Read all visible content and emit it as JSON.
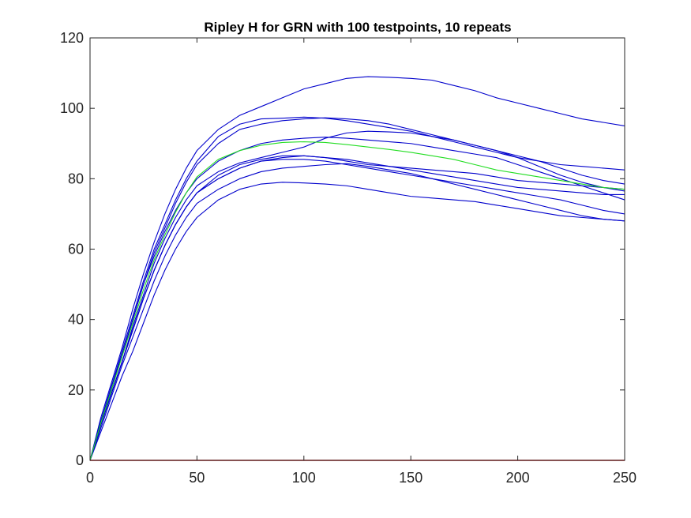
{
  "chart_data": {
    "type": "line",
    "title": "Ripley H for GRN with 100 testpoints, 10 repeats",
    "xlabel": "",
    "ylabel": "",
    "xlim": [
      0,
      250
    ],
    "ylim": [
      0,
      120
    ],
    "xticks": [
      0,
      50,
      100,
      150,
      200,
      250
    ],
    "yticks": [
      0,
      20,
      40,
      60,
      80,
      100,
      120
    ],
    "grid": false,
    "legend": "none",
    "colors": {
      "repeat": "#0000cc",
      "mean": "#22dd22",
      "baseline": "#cc0000",
      "axis": "#262626"
    },
    "x": [
      0,
      5,
      10,
      15,
      20,
      25,
      30,
      35,
      40,
      45,
      50,
      60,
      70,
      80,
      90,
      100,
      110,
      120,
      130,
      140,
      150,
      160,
      170,
      180,
      190,
      200,
      210,
      220,
      230,
      240,
      250
    ],
    "series": [
      {
        "role": "repeat",
        "values": [
          0,
          12,
          22,
          32,
          43,
          53,
          62,
          70,
          77,
          83,
          88,
          94,
          98,
          100.5,
          103,
          105.5,
          107,
          108.5,
          109,
          108.8,
          108.5,
          108,
          106.5,
          105,
          103,
          101.5,
          100,
          98.5,
          97,
          96,
          95
        ]
      },
      {
        "role": "repeat",
        "values": [
          0,
          11,
          21,
          31,
          41,
          51,
          60,
          67,
          74,
          80,
          85,
          92,
          95.5,
          97,
          97.2,
          97.5,
          97.2,
          96.5,
          95.5,
          94.5,
          93.5,
          92,
          90.5,
          89,
          87.5,
          86,
          85,
          84,
          83.5,
          83,
          82.5
        ]
      },
      {
        "role": "repeat",
        "values": [
          0,
          11,
          20,
          30,
          40,
          50,
          59,
          66,
          73,
          79,
          84,
          90,
          94,
          95.5,
          96.5,
          97,
          97.3,
          97,
          96.5,
          95.5,
          94,
          92.5,
          91,
          89.5,
          88,
          86.5,
          85,
          83,
          81,
          79.5,
          78.5
        ]
      },
      {
        "role": "repeat",
        "values": [
          0,
          11,
          21,
          30,
          40,
          50,
          58,
          65,
          71,
          76,
          80,
          85,
          88,
          90,
          91,
          91.5,
          91.8,
          91.5,
          91,
          90.5,
          90,
          89,
          88,
          87,
          86,
          84,
          82,
          80,
          78,
          76,
          74
        ]
      },
      {
        "role": "repeat",
        "values": [
          0,
          10,
          19,
          28,
          38,
          47,
          56,
          63,
          69,
          74,
          78,
          82,
          84.5,
          86,
          87.5,
          89,
          91.5,
          93,
          93.5,
          93.3,
          93,
          92,
          91,
          89.5,
          88,
          86,
          83.5,
          81,
          79,
          77.5,
          76.5
        ]
      },
      {
        "role": "repeat",
        "values": [
          0,
          10,
          19,
          28,
          37,
          46,
          54,
          61,
          67,
          72,
          76,
          81,
          84,
          85.5,
          86.5,
          86.5,
          86,
          85,
          84,
          83.5,
          83,
          82.5,
          82,
          81.5,
          80.5,
          79.5,
          79,
          78.5,
          78,
          77.5,
          77
        ]
      },
      {
        "role": "repeat",
        "values": [
          0,
          10,
          19,
          28,
          37,
          46,
          54,
          61,
          67,
          72,
          76,
          80,
          83,
          85,
          86,
          86.5,
          86,
          85.5,
          84.5,
          83.5,
          82.5,
          81.5,
          80.5,
          79.5,
          78.5,
          77.5,
          77,
          76.5,
          76,
          75.5,
          75.5
        ]
      },
      {
        "role": "repeat",
        "values": [
          0,
          10,
          19,
          28,
          37,
          46,
          54,
          61,
          67,
          72,
          76,
          80,
          83,
          85,
          85.5,
          85.5,
          85,
          84,
          83,
          82,
          81,
          80,
          79,
          78,
          77,
          76,
          75,
          74,
          72.5,
          71,
          70
        ]
      },
      {
        "role": "repeat",
        "values": [
          0,
          9,
          18,
          27,
          35,
          43,
          51,
          58,
          64,
          69,
          73,
          77,
          80,
          82,
          83,
          83.5,
          84,
          84.3,
          83.5,
          82.5,
          81.5,
          80,
          78.5,
          77,
          75.5,
          74,
          72.5,
          71,
          69.5,
          68.5,
          68
        ]
      },
      {
        "role": "repeat",
        "values": [
          0,
          8,
          16,
          24,
          31,
          39,
          47,
          54,
          60,
          65,
          69,
          74,
          77,
          78.5,
          79,
          78.8,
          78.5,
          78,
          77,
          76,
          75,
          74.5,
          74,
          73.5,
          72.5,
          71.5,
          70.5,
          69.5,
          69,
          68.5,
          68
        ]
      },
      {
        "role": "mean",
        "values": [
          0,
          10.5,
          20,
          29.5,
          39,
          48.5,
          57,
          64,
          70.5,
          76,
          80.5,
          85.5,
          88,
          89.5,
          90.3,
          90.5,
          90.3,
          89.7,
          89,
          88.3,
          87.5,
          86.5,
          85.5,
          84,
          82.5,
          81.5,
          80.5,
          79.5,
          78.5,
          77.5,
          77
        ]
      },
      {
        "role": "baseline",
        "values": [
          0,
          0,
          0,
          0,
          0,
          0,
          0,
          0,
          0,
          0,
          0,
          0,
          0,
          0,
          0,
          0,
          0,
          0,
          0,
          0,
          0,
          0,
          0,
          0,
          0,
          0,
          0,
          0,
          0,
          0,
          0
        ]
      }
    ]
  }
}
